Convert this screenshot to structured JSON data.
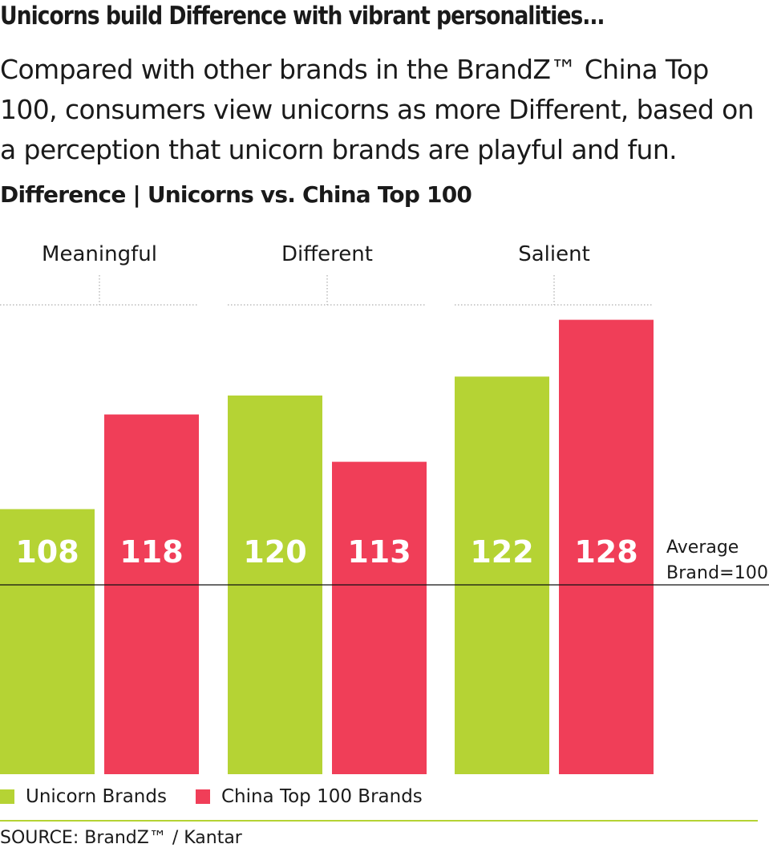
{
  "title": "Unicorns build Difference with vibrant personalities...",
  "subtitle": "Compared with other brands in the BrandZ™ China Top 100, consumers view unicorns as more Different, based on a perception that unicorn brands are playful and fun.",
  "source": "SOURCE: BrandZ™ / Kantar",
  "chart_data": {
    "type": "bar",
    "title": "Difference | Unicorns vs. China Top 100",
    "categories": [
      "Meaningful",
      "Different",
      "Salient"
    ],
    "series": [
      {
        "name": "Unicorn Brands",
        "color": "#b5d334",
        "values": [
          108,
          120,
          122
        ]
      },
      {
        "name": "China Top 100 Brands",
        "color": "#f03e58",
        "values": [
          118,
          113,
          128
        ]
      }
    ],
    "reference_line": {
      "value": 100,
      "label_line1": "Average",
      "label_line2": "Brand=100"
    },
    "ylim": [
      80,
      130
    ],
    "grid": false,
    "legend_placement": "bottom-left"
  }
}
